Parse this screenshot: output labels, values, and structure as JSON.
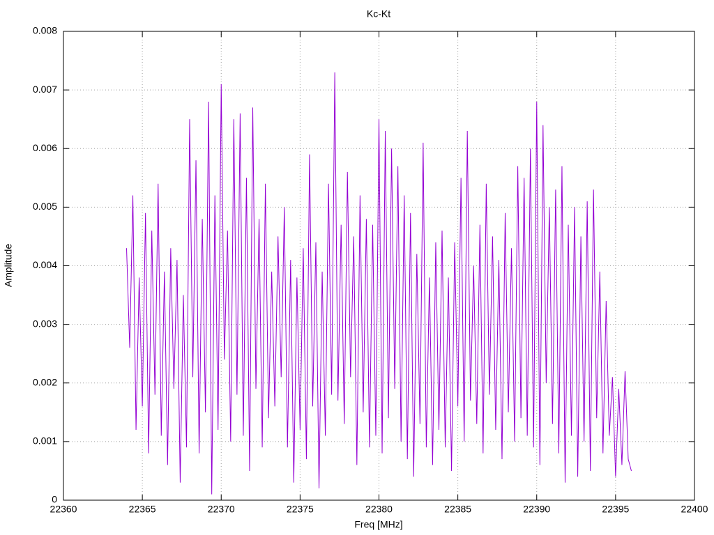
{
  "chart_data": {
    "type": "line",
    "title": "Kc-Kt",
    "xlabel": "Freq [MHz]",
    "ylabel": "Amplitude",
    "xlim": [
      22360,
      22400
    ],
    "xticks": [
      22360,
      22365,
      22370,
      22375,
      22380,
      22385,
      22390,
      22395,
      22400
    ],
    "ylim": [
      0,
      0.008
    ],
    "yticks": [
      0,
      0.001,
      0.002,
      0.003,
      0.004,
      0.005,
      0.006,
      0.007,
      0.008
    ],
    "grid": true,
    "x": [
      22364.0,
      22364.2,
      22364.4,
      22364.6,
      22364.8,
      22365.0,
      22365.2,
      22365.4,
      22365.6,
      22365.8,
      22366.0,
      22366.2,
      22366.4,
      22366.6,
      22366.8,
      22367.0,
      22367.2,
      22367.4,
      22367.6,
      22367.8,
      22368.0,
      22368.2,
      22368.4,
      22368.6,
      22368.8,
      22369.0,
      22369.2,
      22369.4,
      22369.6,
      22369.8,
      22370.0,
      22370.2,
      22370.4,
      22370.6,
      22370.8,
      22371.0,
      22371.2,
      22371.4,
      22371.6,
      22371.8,
      22372.0,
      22372.2,
      22372.4,
      22372.6,
      22372.8,
      22373.0,
      22373.2,
      22373.4,
      22373.6,
      22373.8,
      22374.0,
      22374.2,
      22374.4,
      22374.6,
      22374.8,
      22375.0,
      22375.2,
      22375.4,
      22375.6,
      22375.8,
      22376.0,
      22376.2,
      22376.4,
      22376.6,
      22376.8,
      22377.0,
      22377.2,
      22377.4,
      22377.6,
      22377.8,
      22378.0,
      22378.2,
      22378.4,
      22378.6,
      22378.8,
      22379.0,
      22379.2,
      22379.4,
      22379.6,
      22379.8,
      22380.0,
      22380.2,
      22380.4,
      22380.6,
      22380.8,
      22381.0,
      22381.2,
      22381.4,
      22381.6,
      22381.8,
      22382.0,
      22382.2,
      22382.4,
      22382.6,
      22382.8,
      22383.0,
      22383.2,
      22383.4,
      22383.6,
      22383.8,
      22384.0,
      22384.2,
      22384.4,
      22384.6,
      22384.8,
      22385.0,
      22385.2,
      22385.4,
      22385.6,
      22385.8,
      22386.0,
      22386.2,
      22386.4,
      22386.6,
      22386.8,
      22387.0,
      22387.2,
      22387.4,
      22387.6,
      22387.8,
      22388.0,
      22388.2,
      22388.4,
      22388.6,
      22388.8,
      22389.0,
      22389.2,
      22389.4,
      22389.6,
      22389.8,
      22390.0,
      22390.2,
      22390.4,
      22390.6,
      22390.8,
      22391.0,
      22391.2,
      22391.4,
      22391.6,
      22391.8,
      22392.0,
      22392.2,
      22392.4,
      22392.6,
      22392.8,
      22393.0,
      22393.2,
      22393.4,
      22393.6,
      22393.8,
      22394.0,
      22394.2,
      22394.4,
      22394.6,
      22394.8,
      22395.0,
      22395.2,
      22395.4,
      22395.6,
      22395.8,
      22396.0
    ],
    "series": [
      {
        "color": "#9400d3",
        "values": [
          0.0043,
          0.0026,
          0.0052,
          0.0012,
          0.0038,
          0.0016,
          0.0049,
          0.0008,
          0.0046,
          0.0018,
          0.0054,
          0.0011,
          0.0039,
          0.0006,
          0.0043,
          0.0019,
          0.0041,
          0.0003,
          0.0035,
          0.0009,
          0.0065,
          0.0021,
          0.0058,
          0.0008,
          0.0048,
          0.0015,
          0.0068,
          0.0001,
          0.0052,
          0.0012,
          0.0071,
          0.0024,
          0.0046,
          0.001,
          0.0065,
          0.0018,
          0.0066,
          0.0011,
          0.0055,
          0.0005,
          0.0067,
          0.0019,
          0.0048,
          0.0009,
          0.0054,
          0.0014,
          0.0039,
          0.0016,
          0.0045,
          0.0021,
          0.005,
          0.0009,
          0.0041,
          0.0003,
          0.0038,
          0.0012,
          0.0043,
          0.0007,
          0.0059,
          0.0016,
          0.0044,
          0.0002,
          0.0039,
          0.0011,
          0.0054,
          0.0018,
          0.0073,
          0.0017,
          0.0047,
          0.0013,
          0.0056,
          0.0021,
          0.0045,
          0.0006,
          0.0052,
          0.0015,
          0.0048,
          0.0009,
          0.0047,
          0.0011,
          0.0065,
          0.0008,
          0.0063,
          0.0014,
          0.006,
          0.0019,
          0.0057,
          0.001,
          0.0052,
          0.0007,
          0.0049,
          0.0004,
          0.0042,
          0.0013,
          0.0061,
          0.0009,
          0.0038,
          0.0006,
          0.0044,
          0.0012,
          0.0046,
          0.0009,
          0.0038,
          0.0005,
          0.0044,
          0.0016,
          0.0055,
          0.001,
          0.0063,
          0.0017,
          0.004,
          0.0013,
          0.0047,
          0.0008,
          0.0054,
          0.0018,
          0.0045,
          0.0012,
          0.0041,
          0.0007,
          0.0049,
          0.0015,
          0.0043,
          0.001,
          0.0057,
          0.0014,
          0.0055,
          0.0011,
          0.006,
          0.0009,
          0.0068,
          0.0006,
          0.0064,
          0.002,
          0.005,
          0.0013,
          0.0053,
          0.0008,
          0.0057,
          0.0003,
          0.0047,
          0.0011,
          0.005,
          0.0004,
          0.0045,
          0.001,
          0.0051,
          0.0005,
          0.0053,
          0.0014,
          0.0039,
          0.0008,
          0.0034,
          0.0011,
          0.0021,
          0.0004,
          0.0019,
          0.0006,
          0.0022,
          0.0007,
          0.0005
        ]
      }
    ]
  }
}
